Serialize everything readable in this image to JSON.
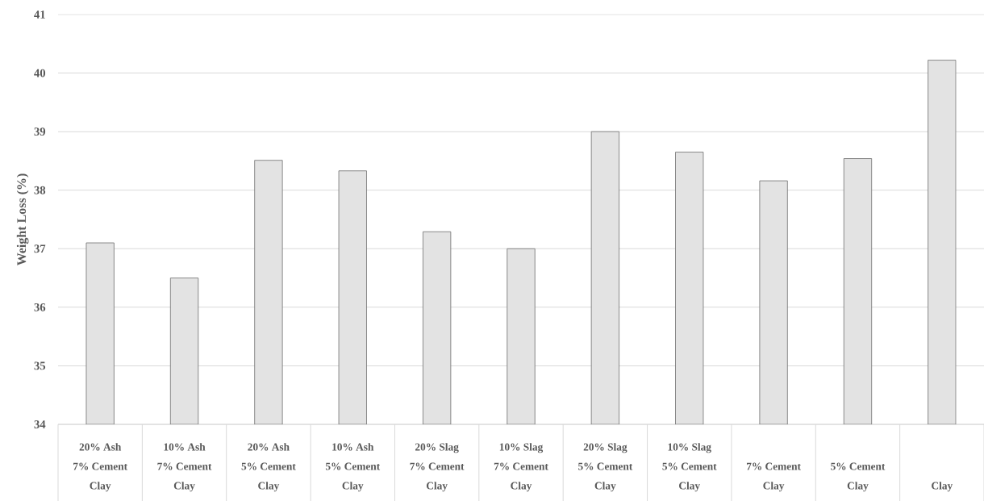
{
  "chart_data": {
    "type": "bar",
    "ylabel": "Weight Loss (%)",
    "categories": [
      "20% Ash\n7% Cement\nClay",
      "10% Ash\n7% Cement\nClay",
      "20% Ash\n5% Cement\nClay",
      "10% Ash\n5% Cement\nClay",
      "20% Slag\n7% Cement\nClay",
      "10% Slag\n7% Cement\nClay",
      "20% Slag\n5% Cement\nClay",
      "10% Slag\n5% Cement\nClay",
      "7% Cement\nClay",
      "5% Cement\nClay",
      "Clay"
    ],
    "values": [
      37.1,
      36.5,
      38.51,
      38.33,
      37.29,
      37.0,
      39.0,
      38.65,
      38.16,
      38.54,
      40.22
    ],
    "color": "#e3e3e3",
    "ylim": [
      34,
      41
    ],
    "yticks": [
      34,
      35,
      36,
      37,
      38,
      39,
      40,
      41
    ],
    "grid": "y"
  }
}
